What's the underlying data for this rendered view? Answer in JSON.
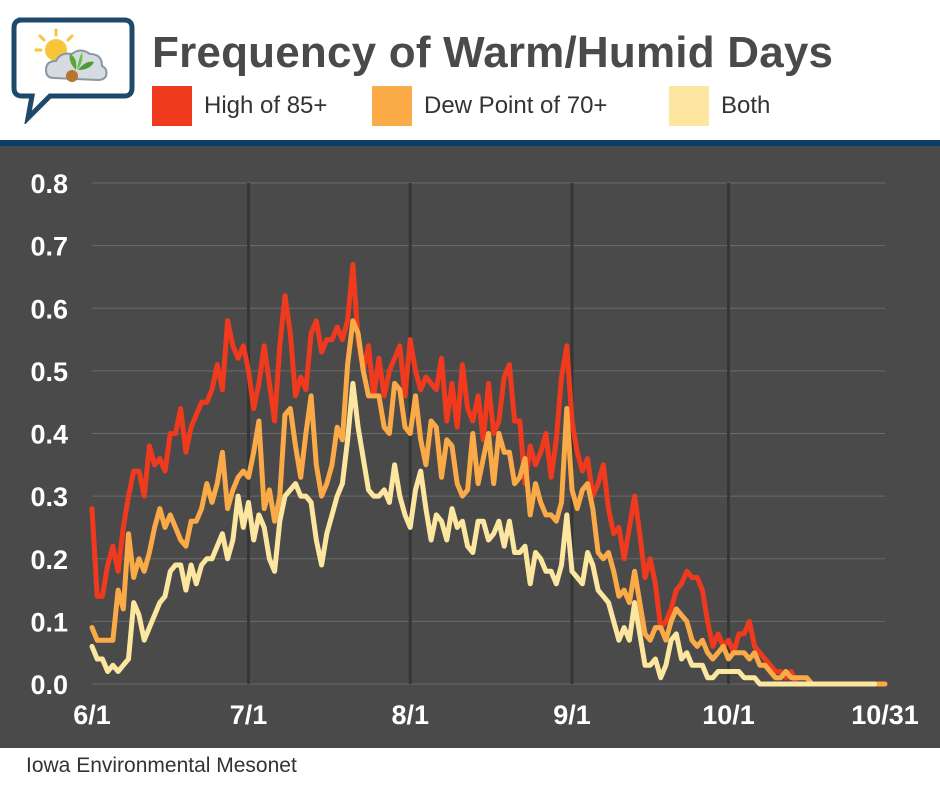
{
  "header": {
    "title": "Frequency of Warm/Humid Days"
  },
  "legend": [
    {
      "label": "High of 85+",
      "color": "#f03a1e"
    },
    {
      "label": "Dew Point of 70+",
      "color": "#fbaa48"
    },
    {
      "label": "Both",
      "color": "#fde7a0"
    }
  ],
  "footer": {
    "source": "Iowa Environmental Mesonet"
  },
  "chart_data": {
    "type": "line",
    "title": "Frequency of Warm/Humid Days",
    "xlabel": "",
    "ylabel": "",
    "ylim": [
      0,
      0.8
    ],
    "xlim": [
      0,
      152
    ],
    "x_note": "day offset from June 1 (0 = 6/1, 152 = 10/31)",
    "yticks": [
      0.0,
      0.1,
      0.2,
      0.3,
      0.4,
      0.5,
      0.6,
      0.7,
      0.8
    ],
    "ytick_labels": [
      "0.0",
      "0.1",
      "0.2",
      "0.3",
      "0.4",
      "0.5",
      "0.6",
      "0.7",
      "0.8"
    ],
    "xticks": [
      0,
      30,
      61,
      92,
      122,
      152
    ],
    "xtick_labels": [
      "6/1",
      "7/1",
      "8/1",
      "9/1",
      "10/1",
      "10/31"
    ],
    "vertical_gridlines_at": [
      30,
      61,
      92,
      122
    ],
    "series": [
      {
        "name": "High of 85+",
        "color": "#f03a1e",
        "values": [
          0.28,
          0.14,
          0.14,
          0.19,
          0.22,
          0.18,
          0.25,
          0.3,
          0.34,
          0.34,
          0.3,
          0.38,
          0.35,
          0.36,
          0.34,
          0.4,
          0.4,
          0.44,
          0.37,
          0.41,
          0.43,
          0.45,
          0.45,
          0.47,
          0.51,
          0.47,
          0.58,
          0.54,
          0.52,
          0.54,
          0.5,
          0.44,
          0.48,
          0.54,
          0.48,
          0.42,
          0.54,
          0.62,
          0.56,
          0.46,
          0.49,
          0.47,
          0.56,
          0.58,
          0.53,
          0.55,
          0.55,
          0.57,
          0.55,
          0.58,
          0.67,
          0.55,
          0.5,
          0.54,
          0.46,
          0.52,
          0.46,
          0.5,
          0.52,
          0.54,
          0.46,
          0.55,
          0.5,
          0.47,
          0.49,
          0.48,
          0.47,
          0.52,
          0.42,
          0.48,
          0.41,
          0.51,
          0.44,
          0.42,
          0.46,
          0.39,
          0.48,
          0.4,
          0.42,
          0.49,
          0.51,
          0.42,
          0.42,
          0.32,
          0.38,
          0.35,
          0.37,
          0.4,
          0.33,
          0.39,
          0.49,
          0.54,
          0.42,
          0.37,
          0.34,
          0.36,
          0.3,
          0.32,
          0.35,
          0.28,
          0.24,
          0.25,
          0.2,
          0.25,
          0.3,
          0.24,
          0.17,
          0.2,
          0.16,
          0.09,
          0.1,
          0.12,
          0.15,
          0.16,
          0.18,
          0.17,
          0.17,
          0.15,
          0.1,
          0.06,
          0.08,
          0.06,
          0.07,
          0.05,
          0.08,
          0.08,
          0.1,
          0.06,
          0.05,
          0.04,
          0.03,
          0.02,
          0.02,
          0.01,
          0.02,
          0.0,
          0.0,
          0.0,
          0.0,
          0.0,
          0.0,
          0.0,
          0.0,
          0.0,
          0.0,
          0.0,
          0.0,
          0.0,
          0.0,
          0.0,
          0.0,
          0.0,
          0.0
        ]
      },
      {
        "name": "Dew Point of 70+",
        "color": "#fbaa48",
        "values": [
          0.09,
          0.07,
          0.07,
          0.07,
          0.07,
          0.15,
          0.12,
          0.24,
          0.17,
          0.2,
          0.18,
          0.21,
          0.25,
          0.28,
          0.25,
          0.27,
          0.25,
          0.23,
          0.22,
          0.26,
          0.26,
          0.28,
          0.32,
          0.29,
          0.32,
          0.37,
          0.28,
          0.31,
          0.33,
          0.34,
          0.33,
          0.37,
          0.42,
          0.28,
          0.31,
          0.26,
          0.3,
          0.43,
          0.44,
          0.38,
          0.33,
          0.4,
          0.46,
          0.35,
          0.3,
          0.32,
          0.35,
          0.41,
          0.39,
          0.51,
          0.58,
          0.56,
          0.5,
          0.46,
          0.46,
          0.46,
          0.41,
          0.4,
          0.48,
          0.47,
          0.41,
          0.4,
          0.46,
          0.39,
          0.35,
          0.42,
          0.41,
          0.33,
          0.39,
          0.38,
          0.32,
          0.3,
          0.31,
          0.4,
          0.32,
          0.36,
          0.4,
          0.32,
          0.4,
          0.37,
          0.37,
          0.32,
          0.33,
          0.36,
          0.27,
          0.32,
          0.29,
          0.27,
          0.27,
          0.26,
          0.29,
          0.44,
          0.31,
          0.28,
          0.31,
          0.32,
          0.28,
          0.21,
          0.2,
          0.21,
          0.18,
          0.14,
          0.15,
          0.13,
          0.18,
          0.13,
          0.08,
          0.07,
          0.09,
          0.09,
          0.07,
          0.1,
          0.12,
          0.11,
          0.1,
          0.07,
          0.06,
          0.07,
          0.05,
          0.04,
          0.05,
          0.06,
          0.04,
          0.05,
          0.05,
          0.05,
          0.04,
          0.05,
          0.03,
          0.03,
          0.02,
          0.01,
          0.01,
          0.02,
          0.01,
          0.01,
          0.01,
          0.01,
          0.0,
          0.0,
          0.0,
          0.0,
          0.0,
          0.0,
          0.0,
          0.0,
          0.0,
          0.0,
          0.0,
          0.0,
          0.0,
          0.0,
          0.0
        ]
      },
      {
        "name": "Both",
        "color": "#fde7a0",
        "values": [
          0.06,
          0.04,
          0.04,
          0.02,
          0.03,
          0.02,
          0.03,
          0.04,
          0.13,
          0.11,
          0.07,
          0.09,
          0.11,
          0.13,
          0.14,
          0.18,
          0.19,
          0.19,
          0.15,
          0.19,
          0.16,
          0.19,
          0.2,
          0.2,
          0.22,
          0.24,
          0.2,
          0.23,
          0.3,
          0.25,
          0.29,
          0.23,
          0.27,
          0.25,
          0.2,
          0.18,
          0.26,
          0.3,
          0.31,
          0.32,
          0.3,
          0.3,
          0.29,
          0.23,
          0.19,
          0.24,
          0.27,
          0.3,
          0.32,
          0.39,
          0.48,
          0.41,
          0.36,
          0.31,
          0.3,
          0.3,
          0.31,
          0.29,
          0.35,
          0.3,
          0.27,
          0.25,
          0.31,
          0.34,
          0.28,
          0.23,
          0.27,
          0.26,
          0.23,
          0.28,
          0.25,
          0.26,
          0.22,
          0.21,
          0.26,
          0.26,
          0.23,
          0.24,
          0.26,
          0.22,
          0.26,
          0.21,
          0.21,
          0.22,
          0.16,
          0.21,
          0.2,
          0.18,
          0.18,
          0.16,
          0.19,
          0.27,
          0.18,
          0.17,
          0.16,
          0.21,
          0.19,
          0.15,
          0.14,
          0.13,
          0.1,
          0.07,
          0.09,
          0.07,
          0.13,
          0.08,
          0.03,
          0.03,
          0.04,
          0.01,
          0.03,
          0.07,
          0.08,
          0.04,
          0.05,
          0.03,
          0.03,
          0.03,
          0.01,
          0.01,
          0.02,
          0.02,
          0.02,
          0.02,
          0.02,
          0.01,
          0.01,
          0.01,
          0.0,
          0.0,
          0.0,
          0.0,
          0.0,
          0.0,
          0.0,
          0.0,
          0.0,
          0.0,
          0.0,
          0.0,
          0.0,
          0.0,
          0.0,
          0.0,
          0.0,
          0.0,
          0.0,
          0.0,
          0.0,
          0.0,
          0.0
        ]
      }
    ]
  }
}
